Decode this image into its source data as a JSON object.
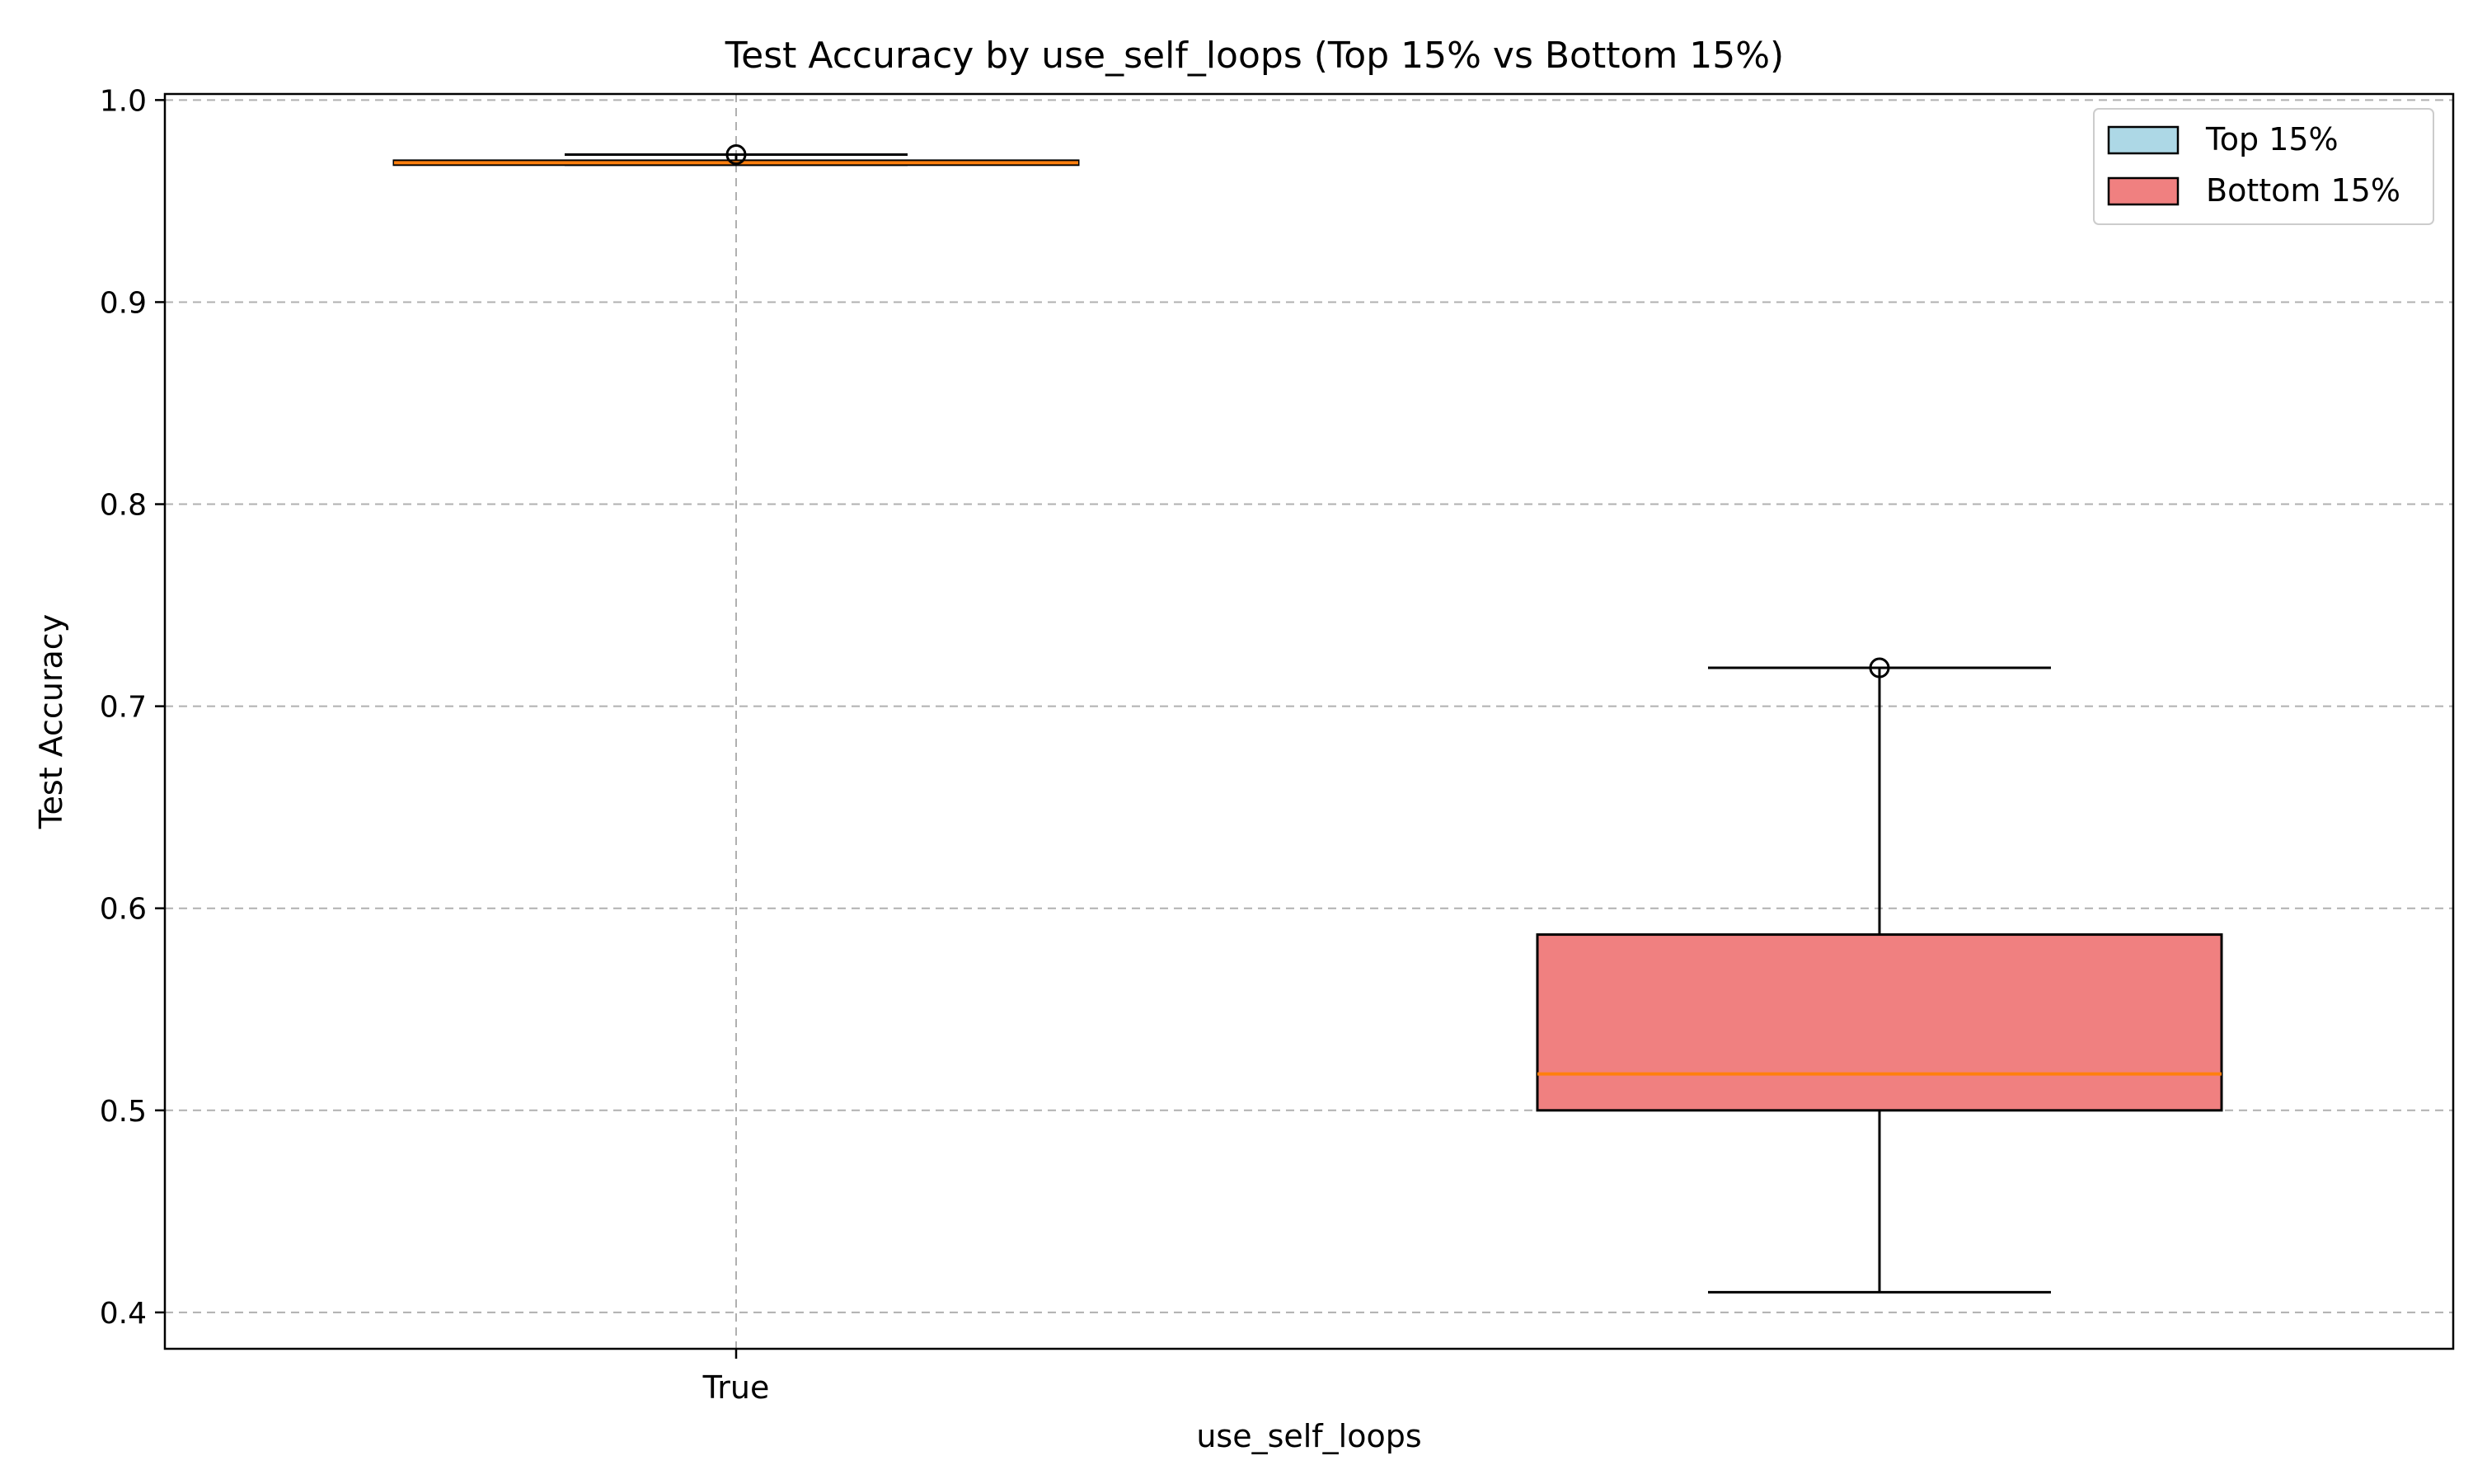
{
  "chart_data": {
    "type": "box",
    "title": "Test Accuracy by use_self_loops (Top 15% vs Bottom 15%)",
    "xlabel": "use_self_loops",
    "ylabel": "Test Accuracy",
    "ylim": [
      0.382,
      1.003
    ],
    "yticks": [
      "0.4",
      "0.5",
      "0.6",
      "0.7",
      "0.8",
      "0.9",
      "1.0"
    ],
    "ytick_values": [
      0.4,
      0.5,
      0.6,
      0.7,
      0.8,
      0.9,
      1.0
    ],
    "categories": [
      "True"
    ],
    "grid": true,
    "legend_position": "top-right",
    "series": [
      {
        "name": "Top 15%",
        "color": "#add8e6",
        "whisker_low": 0.968,
        "q1": 0.968,
        "median": 0.969,
        "q3": 0.97,
        "whisker_high": 0.973,
        "outliers": [
          0.973
        ]
      },
      {
        "name": "Bottom 15%",
        "color": "#f08080",
        "whisker_low": 0.41,
        "q1": 0.5,
        "median": 0.518,
        "q3": 0.587,
        "whisker_high": 0.719,
        "outliers": [
          0.719
        ]
      }
    ],
    "median_color": "#ff7f0e"
  }
}
